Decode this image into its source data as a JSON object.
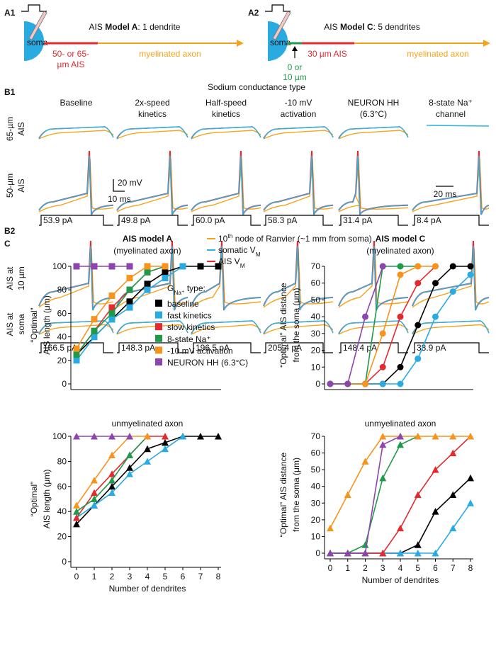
{
  "panel_a": {
    "a1": {
      "label": "A1",
      "title": [
        {
          "text": "AIS "
        },
        {
          "text": "Model A",
          "style": "bold"
        },
        {
          "text": ": 1 dendrite"
        }
      ],
      "soma": "soma",
      "ais": [
        "50- or 65-",
        "µm AIS"
      ],
      "axon": "myelinated axon"
    },
    "a2": {
      "label": "A2",
      "title": [
        {
          "text": "AIS "
        },
        {
          "text": "Model C",
          "style": "bold"
        },
        {
          "text": ": 5 dendrites"
        }
      ],
      "soma": "soma",
      "offset": [
        "0 or",
        "10 µm"
      ],
      "ais": "30 µm AIS",
      "axon": "myelinated axon"
    }
  },
  "panel_b": {
    "b1_label": "B1",
    "title": "Sodium conductance type",
    "columns": [
      [
        "Baseline"
      ],
      [
        "2x-speed",
        "kinetics"
      ],
      [
        "Half-speed",
        "kinetics"
      ],
      [
        "-10 mV",
        "activation"
      ],
      [
        "NEURON HH",
        "(6.3°C)"
      ],
      [
        "8-state Na⁺",
        "channel"
      ]
    ],
    "b1_rows": [
      [
        "65-µm",
        "AIS"
      ],
      [
        "50-µm",
        "AIS"
      ]
    ],
    "scale_mv": "20 mV",
    "scale_ms": "10 ms",
    "scale_ms2": "20 ms",
    "b1_currents": [
      "53.9 pA",
      "49.8 pA",
      "60.0 pA",
      "58.3 pA",
      "31.4 pA",
      "8.4 pA"
    ],
    "b2_label": "B2",
    "legend": [
      [
        {
          "text": "10"
        },
        {
          "text": "th",
          "style": "sup"
        },
        {
          "text": " node of Ranvier (~1 mm from soma)"
        }
      ],
      [
        {
          "text": "somatic V"
        },
        {
          "text": "M",
          "style": "sub"
        }
      ],
      [
        {
          "text": "AIS V"
        },
        {
          "text": "M",
          "style": "sub"
        }
      ]
    ],
    "b2_rows": [
      [
        "AIS at",
        "10 µm"
      ],
      [
        "AIS at",
        "soma"
      ]
    ],
    "b2_currents": [
      "166.5 pA",
      "148.3 pA",
      "196.5 pA",
      "205.4 pA",
      "148.4 pA",
      "38.9 pA"
    ]
  },
  "panel_c_label": "C",
  "chart_data": [
    {
      "type": "line",
      "title": "AIS model A",
      "subtitle": "(myelinated axon)",
      "y_label": [
        "“Optimal”",
        "AIS length (μm)"
      ],
      "x": [
        0,
        1,
        2,
        3,
        4,
        5,
        6,
        7,
        8
      ],
      "xlim": [
        0,
        8
      ],
      "ylim": [
        0,
        100
      ],
      "yticks": [
        0,
        20,
        40,
        60,
        80,
        100
      ],
      "marker": "square",
      "legend_title": [
        {
          "text": "G"
        },
        {
          "text": "Na⁺",
          "style": "sub"
        },
        {
          "text": " type:"
        }
      ],
      "series": [
        {
          "name": "baseline",
          "color": "#000000",
          "values": [
            25,
            40,
            55,
            70,
            85,
            95,
            100,
            100,
            100
          ]
        },
        {
          "name": "fast kinetics",
          "color": "#29abe2",
          "values": [
            20,
            40,
            55,
            65,
            80,
            90,
            100,
            null,
            null
          ]
        },
        {
          "name": "slow kinetics",
          "color": "#e22a2f",
          "values": [
            25,
            45,
            65,
            80,
            95,
            100,
            null,
            null,
            null
          ]
        },
        {
          "name": "8-state Na⁺",
          "color": "#1f9a4a",
          "values": [
            25,
            45,
            60,
            80,
            95,
            100,
            null,
            null,
            null
          ]
        },
        {
          "name": "-10 mV activation",
          "color": "#f7941d",
          "values": [
            30,
            55,
            75,
            90,
            100,
            100,
            null,
            null,
            null
          ]
        },
        {
          "name": "NEURON HH (6.3°C)",
          "color": "#8e44ad",
          "values": [
            100,
            100,
            100,
            100,
            null,
            null,
            null,
            null,
            null
          ]
        }
      ]
    },
    {
      "type": "line",
      "title": "unmyelinated axon",
      "y_label": [
        "“Optimal”",
        "AIS length (μm)"
      ],
      "x_label": "Number of dendrites",
      "x": [
        0,
        1,
        2,
        3,
        4,
        5,
        6,
        7,
        8
      ],
      "xlim": [
        0,
        8
      ],
      "xticks": [
        0,
        1,
        2,
        3,
        4,
        5,
        6,
        7,
        8
      ],
      "ylim": [
        0,
        100
      ],
      "yticks": [
        0,
        20,
        40,
        60,
        80,
        100
      ],
      "marker": "triangle",
      "series": [
        {
          "color": "#000000",
          "values": [
            30,
            45,
            60,
            75,
            90,
            95,
            100,
            100,
            100
          ]
        },
        {
          "color": "#29abe2",
          "values": [
            35,
            45,
            55,
            70,
            80,
            90,
            100,
            null,
            null
          ]
        },
        {
          "color": "#e22a2f",
          "values": [
            35,
            55,
            70,
            85,
            100,
            100,
            null,
            null,
            null
          ]
        },
        {
          "color": "#1f9a4a",
          "values": [
            40,
            50,
            65,
            85,
            100,
            null,
            null,
            null,
            null
          ]
        },
        {
          "color": "#f7941d",
          "values": [
            45,
            65,
            85,
            100,
            100,
            null,
            null,
            null,
            null
          ]
        },
        {
          "color": "#8e44ad",
          "values": [
            100,
            100,
            100,
            100,
            null,
            null,
            null,
            null,
            null
          ]
        }
      ]
    },
    {
      "type": "line",
      "title": "AIS model C",
      "subtitle": "(myelinated axon)",
      "y_label": [
        "“Optimal” AIS distance",
        "from the soma (μm)"
      ],
      "x": [
        0,
        1,
        2,
        3,
        4,
        5,
        6,
        7,
        8
      ],
      "xlim": [
        0,
        8
      ],
      "ylim": [
        0,
        70
      ],
      "yticks": [
        0,
        10,
        20,
        30,
        40,
        50,
        60,
        70
      ],
      "marker": "circle",
      "series": [
        {
          "color": "#000000",
          "values": [
            0,
            0,
            0,
            0,
            10,
            35,
            60,
            70,
            70
          ]
        },
        {
          "color": "#29abe2",
          "values": [
            0,
            0,
            0,
            0,
            0,
            15,
            40,
            55,
            65
          ]
        },
        {
          "color": "#e22a2f",
          "values": [
            0,
            0,
            0,
            10,
            40,
            60,
            70,
            null,
            null
          ]
        },
        {
          "color": "#1f9a4a",
          "values": [
            0,
            0,
            0,
            70,
            70,
            70,
            null,
            null,
            null
          ]
        },
        {
          "color": "#f7941d",
          "values": [
            0,
            0,
            0,
            30,
            65,
            70,
            70,
            null,
            null
          ]
        },
        {
          "color": "#8e44ad",
          "values": [
            0,
            0,
            40,
            70,
            null,
            null,
            null,
            null,
            null
          ]
        }
      ]
    },
    {
      "type": "line",
      "title": "unmyelinated axon",
      "y_label": [
        "“Optimal” AIS distance",
        "from the soma (μm)"
      ],
      "x_label": "Number of dendrites",
      "x": [
        0,
        1,
        2,
        3,
        4,
        5,
        6,
        7,
        8
      ],
      "xlim": [
        0,
        8
      ],
      "xticks": [
        0,
        1,
        2,
        3,
        4,
        5,
        6,
        7,
        8
      ],
      "ylim": [
        0,
        70
      ],
      "yticks": [
        0,
        10,
        20,
        30,
        40,
        50,
        60,
        70
      ],
      "marker": "triangle",
      "series": [
        {
          "color": "#000000",
          "values": [
            0,
            0,
            0,
            0,
            0,
            5,
            25,
            35,
            45
          ]
        },
        {
          "color": "#29abe2",
          "values": [
            0,
            0,
            0,
            0,
            0,
            0,
            0,
            15,
            30
          ]
        },
        {
          "color": "#e22a2f",
          "values": [
            0,
            0,
            0,
            0,
            15,
            35,
            50,
            60,
            70
          ]
        },
        {
          "color": "#1f9a4a",
          "values": [
            0,
            0,
            5,
            45,
            65,
            70,
            null,
            null,
            null
          ]
        },
        {
          "color": "#f7941d",
          "values": [
            15,
            35,
            55,
            70,
            70,
            70,
            70,
            70,
            70
          ]
        },
        {
          "color": "#8e44ad",
          "values": [
            0,
            0,
            0,
            65,
            70,
            null,
            null,
            null,
            null
          ]
        }
      ]
    }
  ]
}
